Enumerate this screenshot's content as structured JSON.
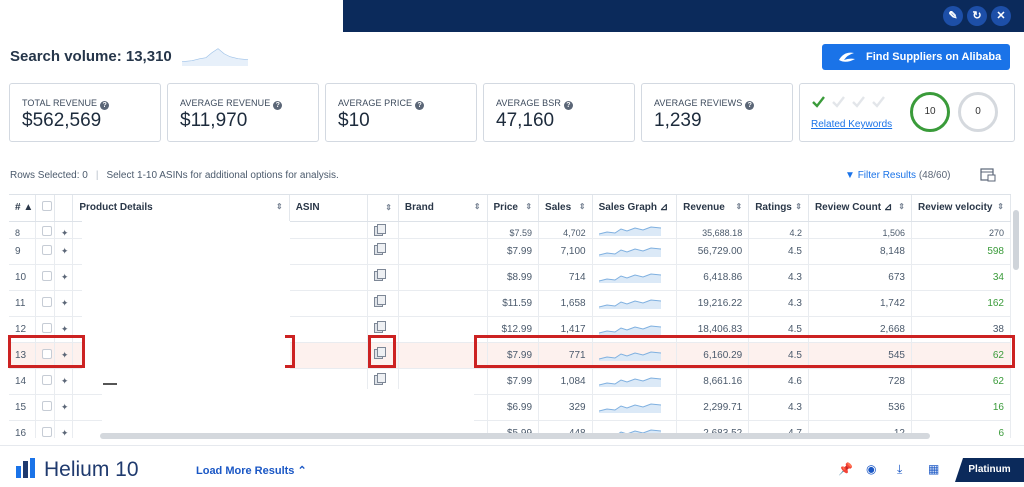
{
  "window": {
    "buttons": [
      "pin-icon",
      "refresh-icon",
      "close-icon"
    ]
  },
  "header": {
    "search_volume_label": "Search volume: 13,310",
    "alibaba_button": "Find Suppliers on Alibaba"
  },
  "metrics": [
    {
      "label": "TOTAL REVENUE",
      "value": "$562,569"
    },
    {
      "label": "AVERAGE REVENUE",
      "value": "$11,970"
    },
    {
      "label": "AVERAGE PRICE",
      "value": "$10"
    },
    {
      "label": "AVERAGE BSR",
      "value": "47,160"
    },
    {
      "label": "AVERAGE REVIEWS",
      "value": "1,239"
    }
  ],
  "keywords": {
    "link": "Related Keywords",
    "count_green": "10",
    "count_gray": "0",
    "checks_green": 1,
    "checks_total": 4
  },
  "toolbar": {
    "rows_selected": "Rows Selected: 0",
    "hint": "Select 1-10 ASINs for additional options for analysis.",
    "filter_label": "Filter Results",
    "filter_count": "(48/60)"
  },
  "table": {
    "columns": [
      "#",
      "",
      "",
      "Product Details",
      "ASIN",
      "",
      "Brand",
      "Price",
      "Sales",
      "Sales Graph",
      "Revenue",
      "Ratings",
      "Review Count",
      "Review velocity"
    ],
    "rows": [
      {
        "n": "8",
        "price": "$7.59",
        "sales": "4,702",
        "revenue": "35,688.18",
        "rating": "4.2",
        "reviews": "1,506",
        "velocity": "270",
        "vgreen": false
      },
      {
        "n": "9",
        "price": "$7.99",
        "sales": "7,100",
        "revenue": "56,729.00",
        "rating": "4.5",
        "reviews": "8,148",
        "velocity": "598",
        "vgreen": true
      },
      {
        "n": "10",
        "price": "$8.99",
        "sales": "714",
        "revenue": "6,418.86",
        "rating": "4.3",
        "reviews": "673",
        "velocity": "34",
        "vgreen": true
      },
      {
        "n": "11",
        "price": "$11.59",
        "sales": "1,658",
        "revenue": "19,216.22",
        "rating": "4.3",
        "reviews": "1,742",
        "velocity": "162",
        "vgreen": true
      },
      {
        "n": "12",
        "price": "$12.99",
        "sales": "1,417",
        "revenue": "18,406.83",
        "rating": "4.5",
        "reviews": "2,668",
        "velocity": "38",
        "vgreen": false
      },
      {
        "n": "13",
        "price": "$7.99",
        "sales": "771",
        "revenue": "6,160.29",
        "rating": "4.5",
        "reviews": "545",
        "velocity": "62",
        "vgreen": true
      },
      {
        "n": "14",
        "price": "$7.99",
        "sales": "1,084",
        "revenue": "8,661.16",
        "rating": "4.6",
        "reviews": "728",
        "velocity": "62",
        "vgreen": true
      },
      {
        "n": "15",
        "price": "$6.99",
        "sales": "329",
        "revenue": "2,299.71",
        "rating": "4.3",
        "reviews": "536",
        "velocity": "16",
        "vgreen": true
      },
      {
        "n": "16",
        "price": "$5.99",
        "sales": "448",
        "revenue": "2,683.52",
        "rating": "4.7",
        "reviews": "12",
        "velocity": "6",
        "vgreen": true
      }
    ]
  },
  "footer": {
    "brand": "Helium 10",
    "load_more": "Load More Results",
    "plan": "Platinum"
  },
  "colors": {
    "accent": "#1a73e8",
    "navy": "#0b2a5b",
    "highlight": "#cc2222",
    "positive": "#3a9b3a"
  }
}
